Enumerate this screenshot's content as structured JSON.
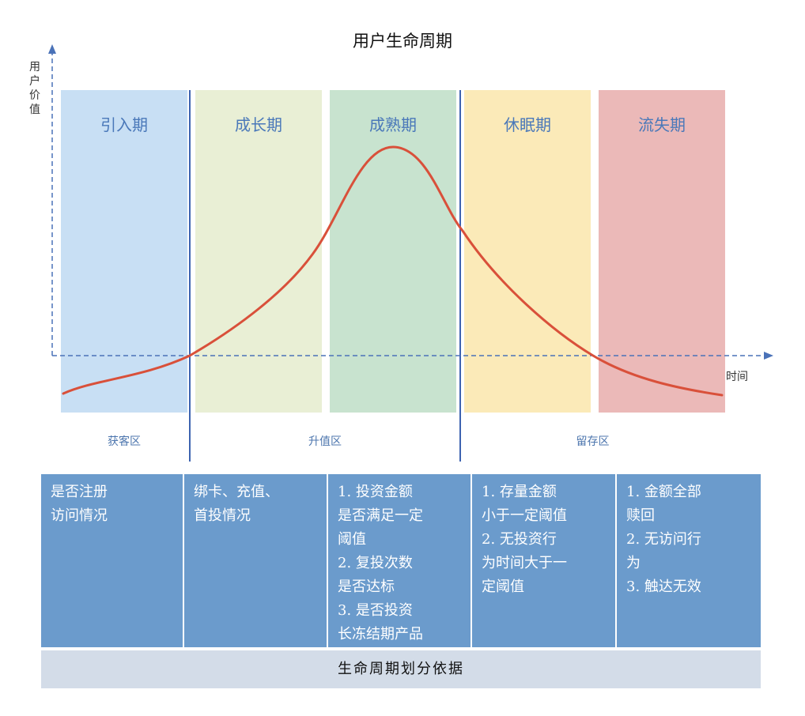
{
  "title": "用户生命周期",
  "axes": {
    "y_label": "用户价值",
    "x_label": "时间"
  },
  "stages": [
    {
      "name": "引入期",
      "color": "#c8dff4"
    },
    {
      "name": "成长期",
      "color": "#e9efd5"
    },
    {
      "name": "成熟期",
      "color": "#c8e3cf"
    },
    {
      "name": "休眠期",
      "color": "#fbeab8"
    },
    {
      "name": "流失期",
      "color": "#ebb9b8"
    }
  ],
  "zones": [
    "获客区",
    "升值区",
    "留存区"
  ],
  "criteria": [
    {
      "text": "是否注册\n访问情况"
    },
    {
      "text": "绑卡、充值、\n首投情况"
    },
    {
      "text": "1. 投资金额\n是否满足一定\n阈值\n2. 复投次数\n是否达标\n3. 是否投资\n长冻结期产品"
    },
    {
      "text": "1. 存量金额\n小于一定阈值\n2. 无投资行\n为时间大于一\n定阈值"
    },
    {
      "text": "1.   金额全部\n     赎回\n2.   无访问行\n     为\n3.   触达无效"
    }
  ],
  "footer": "生命周期划分依据",
  "colors": {
    "curve": "#d9503a",
    "axis": "#4a72b8",
    "divider": "#3d63b0",
    "cell": "#6b9bcc",
    "footer_bg": "#d3dce8"
  }
}
